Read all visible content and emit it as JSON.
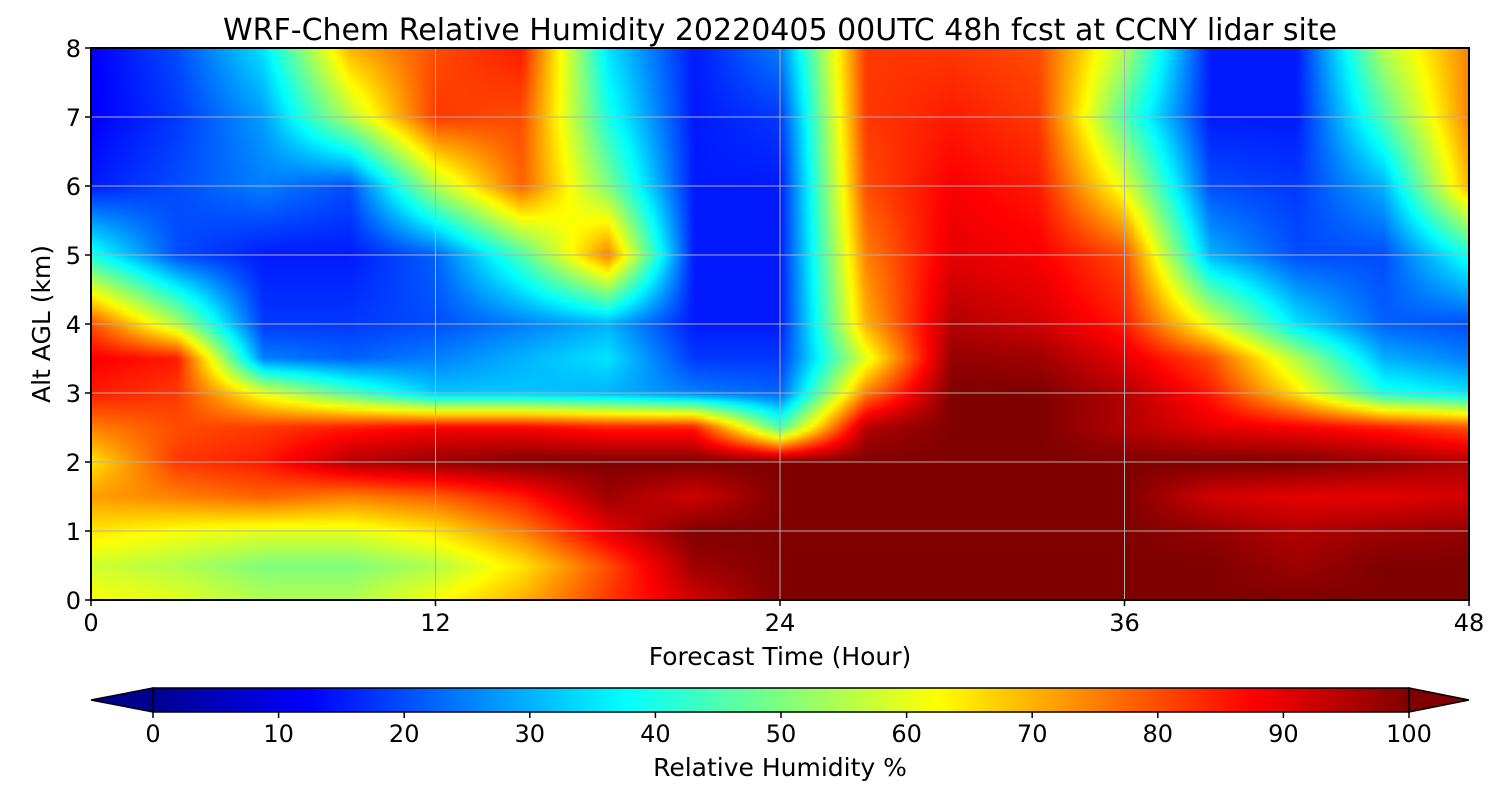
{
  "chart_data": {
    "type": "heatmap",
    "title": "WRF-Chem Relative Humidity 20220405 00UTC 48h fcst at CCNY lidar site",
    "xlabel": "Forecast Time (Hour)",
    "ylabel": "Alt AGL (km)",
    "xlim": [
      0,
      48
    ],
    "ylim": [
      0,
      8
    ],
    "xticks": [
      "0",
      "12",
      "24",
      "36",
      "48"
    ],
    "yticks": [
      "0",
      "1",
      "2",
      "3",
      "4",
      "5",
      "6",
      "7",
      "8"
    ],
    "grid": true,
    "colormap": "jet",
    "colorbar": {
      "label": "Relative Humidity %",
      "range": [
        0,
        100
      ],
      "ticks": [
        "0",
        "10",
        "20",
        "30",
        "40",
        "50",
        "60",
        "70",
        "80",
        "90",
        "100"
      ],
      "extend": "both",
      "placement": "bottom"
    },
    "x": [
      0,
      3,
      6,
      9,
      12,
      15,
      18,
      21,
      24,
      27,
      30,
      33,
      36,
      39,
      42,
      45,
      48
    ],
    "y": [
      0,
      0.5,
      1,
      1.5,
      2,
      2.5,
      3,
      3.5,
      4,
      5,
      6,
      7,
      8
    ],
    "z": [
      [
        62,
        60,
        55,
        55,
        62,
        70,
        82,
        92,
        100,
        100,
        100,
        100,
        100,
        100,
        100,
        100,
        100
      ],
      [
        58,
        55,
        50,
        50,
        55,
        65,
        80,
        97,
        100,
        100,
        100,
        100,
        100,
        100,
        97,
        100,
        100
      ],
      [
        65,
        62,
        60,
        60,
        65,
        75,
        90,
        100,
        100,
        100,
        100,
        100,
        100,
        98,
        95,
        97,
        98
      ],
      [
        72,
        75,
        78,
        75,
        78,
        85,
        97,
        92,
        100,
        100,
        100,
        100,
        100,
        92,
        90,
        90,
        92
      ],
      [
        65,
        82,
        85,
        95,
        98,
        100,
        100,
        100,
        100,
        100,
        100,
        100,
        100,
        100,
        100,
        98,
        95
      ],
      [
        75,
        80,
        82,
        85,
        88,
        88,
        85,
        85,
        45,
        95,
        100,
        100,
        95,
        90,
        88,
        85,
        80
      ],
      [
        85,
        82,
        60,
        45,
        32,
        32,
        30,
        25,
        22,
        75,
        100,
        100,
        95,
        85,
        65,
        40,
        35
      ],
      [
        88,
        85,
        25,
        22,
        25,
        30,
        35,
        18,
        18,
        60,
        98,
        97,
        90,
        80,
        55,
        30,
        25
      ],
      [
        80,
        55,
        18,
        18,
        20,
        25,
        30,
        15,
        15,
        70,
        95,
        92,
        85,
        60,
        35,
        22,
        20
      ],
      [
        40,
        20,
        15,
        15,
        22,
        45,
        75,
        15,
        15,
        75,
        90,
        88,
        80,
        30,
        20,
        20,
        40
      ],
      [
        15,
        20,
        25,
        20,
        55,
        78,
        50,
        15,
        15,
        80,
        88,
        85,
        60,
        20,
        18,
        30,
        70
      ],
      [
        12,
        18,
        28,
        55,
        82,
        80,
        40,
        15,
        18,
        82,
        85,
        82,
        45,
        15,
        15,
        45,
        75
      ],
      [
        12,
        20,
        35,
        70,
        80,
        85,
        35,
        15,
        25,
        82,
        82,
        80,
        55,
        15,
        15,
        55,
        75
      ]
    ]
  }
}
